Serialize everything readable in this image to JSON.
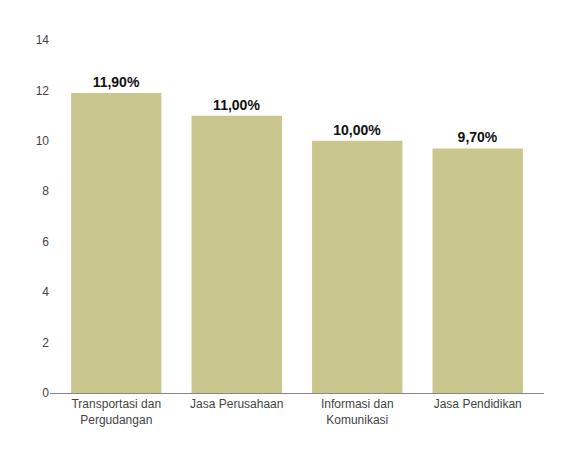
{
  "chart_data": {
    "type": "bar",
    "categories": [
      "Transportasi dan\nPergudangan",
      "Jasa Perusahaan",
      "Informasi dan\nKomunikasi",
      "Jasa Pendidikan"
    ],
    "values": [
      11.9,
      11.0,
      10.0,
      9.7
    ],
    "value_labels": [
      "11,90%",
      "11,00%",
      "10,00%",
      "9,70%"
    ],
    "data_labels": true,
    "color": "#c9c68e",
    "ylim": [
      0,
      14
    ],
    "yticks": [
      0,
      2,
      4,
      6,
      8,
      10,
      12,
      14
    ],
    "grid": false
  }
}
